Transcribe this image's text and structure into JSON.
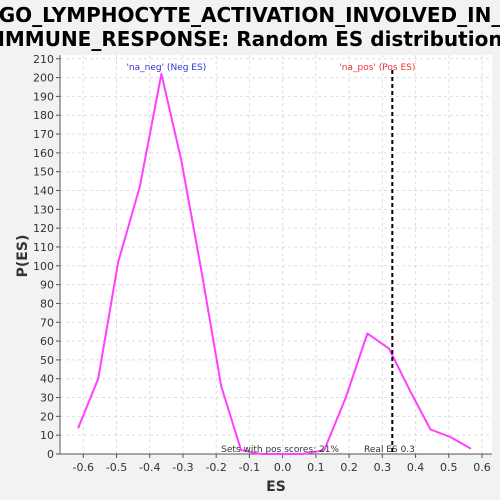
{
  "chart_data": {
    "type": "line",
    "title_lines": [
      "GO_LYMPHOCYTE_ACTIVATION_INVOLVED_IN_",
      "IMMUNE_RESPONSE: Random ES distribution"
    ],
    "xlabel": "ES",
    "ylabel": "P(ES)",
    "xlim": [
      -0.67,
      0.63
    ],
    "ylim": [
      0,
      212
    ],
    "xticks": [
      -0.6,
      -0.5,
      -0.4,
      -0.3,
      -0.2,
      -0.1,
      0.0,
      0.1,
      0.2,
      0.3,
      0.4,
      0.5,
      0.6
    ],
    "xtick_labels": [
      "-0.6",
      "-0.5",
      "-0.4",
      "-0.3",
      "-0.2",
      "-0.1",
      "0.0",
      "0.1",
      "0.2",
      "0.3",
      "0.4",
      "0.5",
      "0.6"
    ],
    "yticks": [
      0,
      10,
      20,
      30,
      40,
      50,
      60,
      70,
      80,
      90,
      100,
      110,
      120,
      130,
      140,
      150,
      160,
      170,
      180,
      190,
      200,
      210
    ],
    "grid": true,
    "series": [
      {
        "color": "#ff40ff",
        "x": [
          -0.615,
          -0.555,
          -0.495,
          -0.43,
          -0.365,
          -0.305,
          -0.245,
          -0.185,
          -0.125,
          -0.065,
          0.0,
          0.06,
          0.125,
          0.19,
          0.255,
          0.32,
          0.385,
          0.445,
          0.505,
          0.565
        ],
        "y": [
          14,
          40,
          102,
          142,
          202,
          156,
          98,
          36,
          2,
          0,
          0,
          0,
          2,
          30,
          64,
          56,
          33,
          13,
          9,
          3
        ]
      }
    ],
    "real_es": 0.33,
    "annotations": {
      "neg_label": "'na_neg' (Neg ES)",
      "pos_label": "'na_pos' (Pos ES)",
      "sets_pos": "Sets with pos scores: 21%",
      "real_es_label": "Real ES 0.3"
    },
    "colors": {
      "neg_label": "#3333cc",
      "pos_label": "#ee3333",
      "grid": "#dddddd",
      "plot_bg": "#ffffff",
      "page_bg": "#f2f2f2"
    }
  }
}
